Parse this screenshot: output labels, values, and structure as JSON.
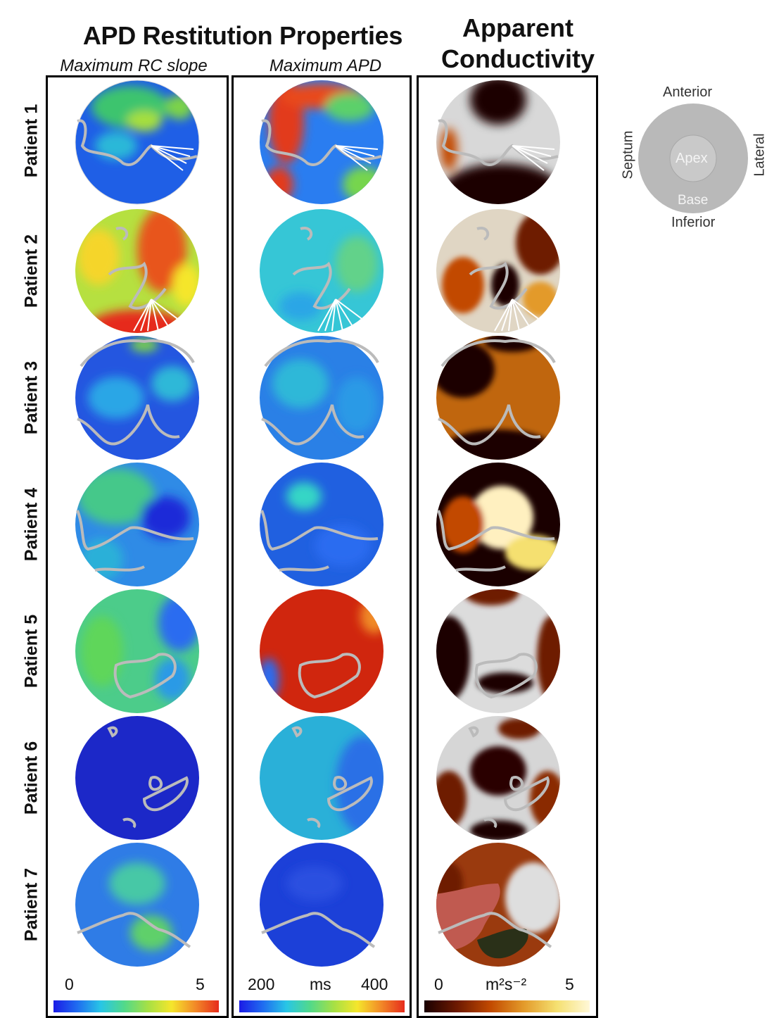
{
  "titles": {
    "apd_restitution": "APD Restitution Properties",
    "max_rc_slope": "Maximum RC slope",
    "max_apd": "Maximum APD",
    "apparent_conductivity": [
      "Apparent",
      "Conductivity"
    ]
  },
  "patients": [
    "Patient 1",
    "Patient 2",
    "Patient 3",
    "Patient 4",
    "Patient 5",
    "Patient 6",
    "Patient 7"
  ],
  "orientation_legend": {
    "anterior": "Anterior",
    "inferior": "Inferior",
    "septum": "Septum",
    "lateral": "Lateral",
    "apex": "Apex",
    "base": "Base"
  },
  "colorbars": {
    "rc_slope": {
      "min": "0",
      "max": "5",
      "unit": ""
    },
    "apd": {
      "min": "200",
      "max": "400",
      "unit": "ms"
    },
    "conductivity": {
      "min": "0",
      "max": "5",
      "unit": "m²s⁻²"
    }
  },
  "colors": {
    "jet": [
      "#1b1be6",
      "#1f6cf0",
      "#28c6e6",
      "#52d98a",
      "#a6e045",
      "#f5e62c",
      "#f28a28",
      "#e62c1c"
    ],
    "heat": [
      "#1a0000",
      "#6e1a00",
      "#c24a00",
      "#e39a2a",
      "#f5e070",
      "#fff8d8"
    ]
  }
}
